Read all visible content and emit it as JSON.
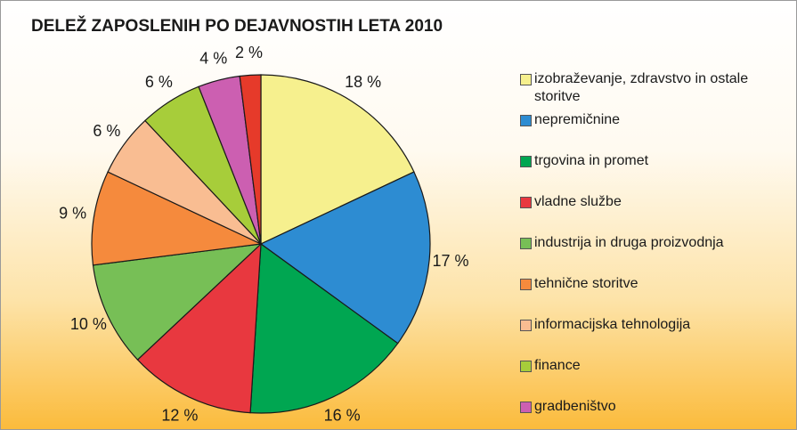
{
  "chart_data": {
    "type": "pie",
    "title": "DELEŽ ZAPOSLENIH PO DEJAVNOSTIH LETA 2010",
    "categories": [
      "izobraževanje, zdravstvo in ostale storitve",
      "nepremičnine",
      "trgovina in promet",
      "vladne službe",
      "industrija in druga proizvodnja",
      "tehnične storitve",
      "informacijska tehnologija",
      "finance",
      "gradbeništvo",
      null
    ],
    "values": [
      18,
      17,
      16,
      12,
      10,
      9,
      6,
      6,
      4,
      2
    ],
    "value_labels": [
      "18 %",
      "17 %",
      "16 %",
      "12 %",
      "10 %",
      "9 %",
      "6 %",
      "6 %",
      "4 %",
      "2 %"
    ],
    "colors": [
      "#f6f08e",
      "#2d8cd2",
      "#00a651",
      "#e8383f",
      "#77bf56",
      "#f58a3d",
      "#f9bd92",
      "#a7cd3a",
      "#cc5fb1",
      "#e63a2a"
    ]
  }
}
